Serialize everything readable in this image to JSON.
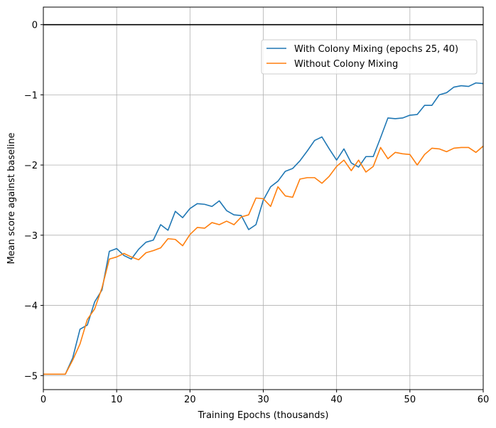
{
  "chart_data": {
    "type": "line",
    "title": "",
    "xlabel": "Training Epochs (thousands)",
    "ylabel": "Mean score against baseline",
    "xlim": [
      0,
      60
    ],
    "ylim": [
      -5.2,
      0.25
    ],
    "xticks": [
      0,
      10,
      20,
      30,
      40,
      50,
      60
    ],
    "yticks": [
      -5,
      -4,
      -3,
      -2,
      -1,
      0
    ],
    "xtick_labels": [
      "0",
      "10",
      "20",
      "30",
      "40",
      "50",
      "60"
    ],
    "ytick_labels": [
      "−5",
      "−4",
      "−3",
      "−2",
      "−1",
      "0"
    ],
    "grid": true,
    "legend_position": "upper-right",
    "reference_line": {
      "y": 0,
      "color": "#000000"
    },
    "series": [
      {
        "name": "With Colony Mixing (epochs 25, 40)",
        "color": "#1f77b4",
        "x": [
          0,
          1,
          2,
          3,
          4,
          5,
          6,
          7,
          8,
          9,
          10,
          11,
          12,
          13,
          14,
          15,
          16,
          17,
          18,
          19,
          20,
          21,
          22,
          23,
          24,
          25,
          26,
          27,
          28,
          29,
          30,
          31,
          32,
          33,
          34,
          35,
          36,
          37,
          38,
          39,
          40,
          41,
          42,
          43,
          44,
          45,
          46,
          47,
          48,
          49,
          50,
          51,
          52,
          53,
          54,
          55,
          56,
          57,
          58,
          59,
          60
        ],
        "values": [
          -4.98,
          -4.98,
          -4.98,
          -4.98,
          -4.75,
          -4.34,
          -4.28,
          -3.95,
          -3.78,
          -3.23,
          -3.19,
          -3.29,
          -3.34,
          -3.2,
          -3.1,
          -3.07,
          -2.85,
          -2.93,
          -2.66,
          -2.75,
          -2.62,
          -2.55,
          -2.56,
          -2.59,
          -2.51,
          -2.65,
          -2.71,
          -2.72,
          -2.92,
          -2.85,
          -2.5,
          -2.31,
          -2.23,
          -2.09,
          -2.05,
          -1.94,
          -1.8,
          -1.65,
          -1.6,
          -1.77,
          -1.93,
          -1.77,
          -1.97,
          -2.03,
          -1.88,
          -1.88,
          -1.61,
          -1.33,
          -1.34,
          -1.33,
          -1.29,
          -1.28,
          -1.15,
          -1.15,
          -1.0,
          -0.97,
          -0.89,
          -0.87,
          -0.88,
          -0.83,
          -0.84
        ]
      },
      {
        "name": "Without Colony Mixing",
        "color": "#ff7f0e",
        "x": [
          0,
          1,
          2,
          3,
          4,
          5,
          6,
          7,
          8,
          9,
          10,
          11,
          12,
          13,
          14,
          15,
          16,
          17,
          18,
          19,
          20,
          21,
          22,
          23,
          24,
          25,
          26,
          27,
          28,
          29,
          30,
          31,
          32,
          33,
          34,
          35,
          36,
          37,
          38,
          39,
          40,
          41,
          42,
          43,
          44,
          45,
          46,
          47,
          48,
          49,
          50,
          51,
          52,
          53,
          54,
          55,
          56,
          57,
          58,
          59,
          60
        ],
        "values": [
          -4.98,
          -4.98,
          -4.98,
          -4.98,
          -4.78,
          -4.55,
          -4.2,
          -4.05,
          -3.75,
          -3.34,
          -3.31,
          -3.26,
          -3.31,
          -3.35,
          -3.25,
          -3.22,
          -3.18,
          -3.05,
          -3.06,
          -3.15,
          -2.99,
          -2.89,
          -2.9,
          -2.82,
          -2.85,
          -2.8,
          -2.85,
          -2.74,
          -2.71,
          -2.47,
          -2.48,
          -2.59,
          -2.31,
          -2.44,
          -2.46,
          -2.2,
          -2.18,
          -2.18,
          -2.26,
          -2.16,
          -2.02,
          -1.93,
          -2.08,
          -1.93,
          -2.1,
          -2.02,
          -1.75,
          -1.91,
          -1.82,
          -1.84,
          -1.85,
          -2.0,
          -1.85,
          -1.76,
          -1.77,
          -1.81,
          -1.76,
          -1.75,
          -1.75,
          -1.82,
          -1.73
        ]
      }
    ]
  }
}
